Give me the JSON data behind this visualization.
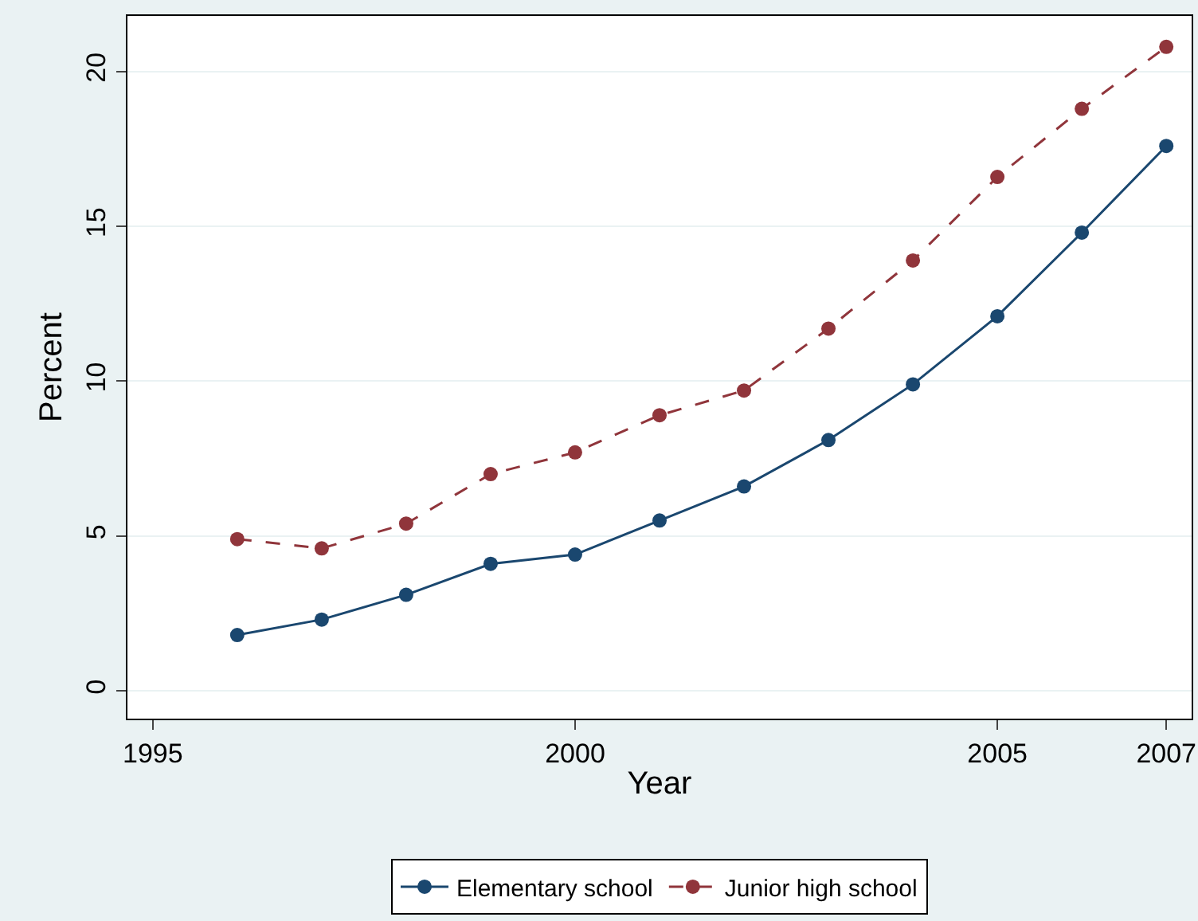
{
  "chart_data": {
    "type": "line",
    "xlabel": "Year",
    "ylabel": "Percent",
    "x": [
      1996,
      1997,
      1998,
      1999,
      2000,
      2001,
      2002,
      2003,
      2004,
      2005,
      2006,
      2007
    ],
    "series": [
      {
        "name": "Elementary school",
        "color": "#1a476f",
        "line_style": "solid",
        "values": [
          1.8,
          2.3,
          3.1,
          4.1,
          4.4,
          5.5,
          6.6,
          8.1,
          9.9,
          12.1,
          14.8,
          17.6
        ]
      },
      {
        "name": "Junior high school",
        "color": "#90353b",
        "line_style": "dashed",
        "values": [
          4.9,
          4.6,
          5.4,
          7.0,
          7.7,
          8.9,
          9.7,
          11.7,
          13.9,
          16.6,
          18.8,
          20.8
        ]
      }
    ],
    "xlim": [
      1994.7,
      2007.3
    ],
    "xticks": [
      1995,
      2000,
      2005,
      2007
    ],
    "ylim": [
      -0.9,
      21.8
    ],
    "yticks": [
      0,
      5,
      10,
      15,
      20
    ],
    "grid": "y",
    "legend": "bottom",
    "marker": "circle"
  }
}
